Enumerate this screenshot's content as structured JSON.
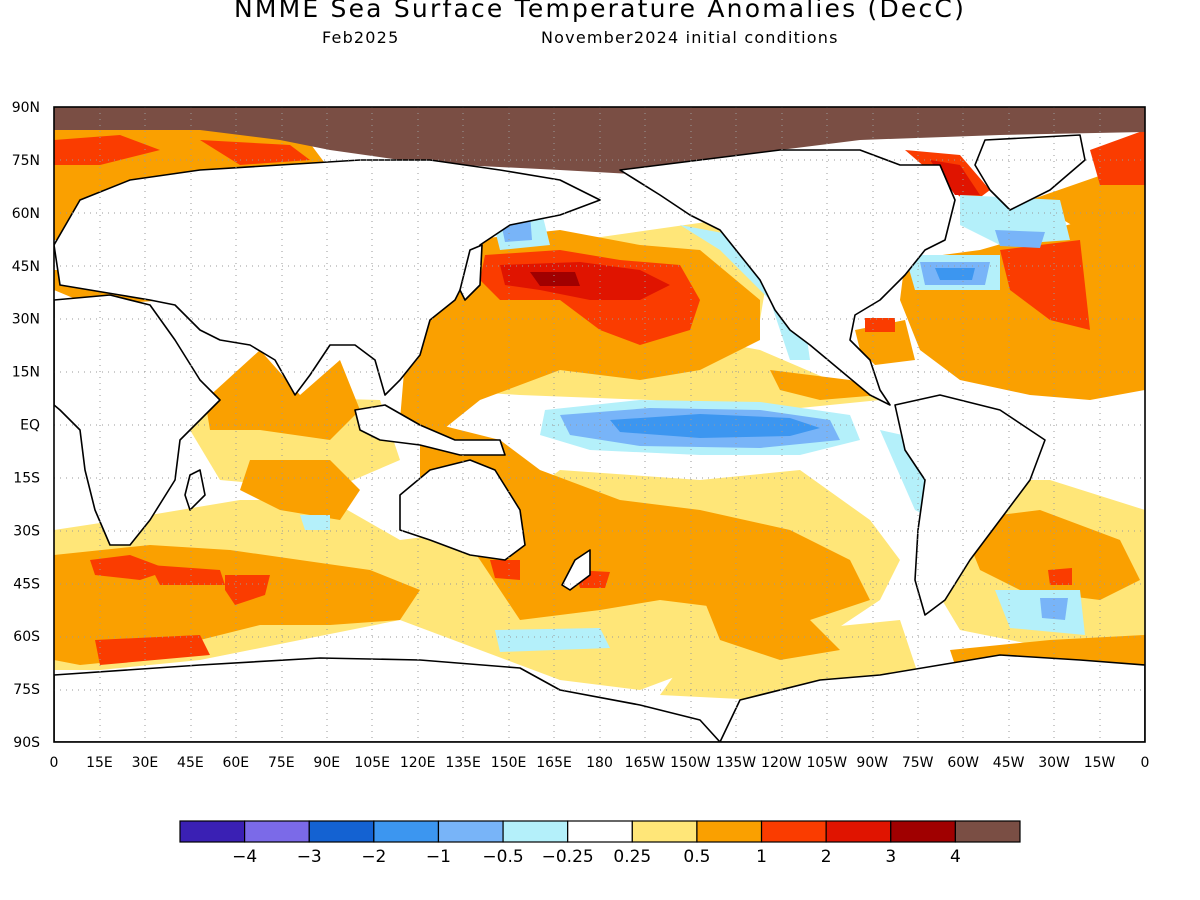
{
  "title": "NMME Sea Surface Temperature Anomalies (DecC)",
  "subtitle_left": "Feb2025",
  "subtitle_right": "November2024 initial conditions",
  "map": {
    "projection": "equirectangular",
    "lon_range": [
      0,
      360
    ],
    "lat_range": [
      -90,
      90
    ],
    "grid": "dotted",
    "lat_labels": [
      "90N",
      "75N",
      "60N",
      "45N",
      "30N",
      "15N",
      "EQ",
      "15S",
      "30S",
      "45S",
      "60S",
      "75S",
      "90S"
    ],
    "lon_labels": [
      "0",
      "15E",
      "30E",
      "45E",
      "60E",
      "75E",
      "90E",
      "105E",
      "120E",
      "135E",
      "150E",
      "165E",
      "180",
      "165W",
      "150W",
      "135W",
      "120W",
      "105W",
      "90W",
      "75W",
      "60W",
      "45W",
      "30W",
      "15W",
      "0"
    ]
  },
  "colorbar": {
    "colors": [
      "#3a20b4",
      "#7b6ae8",
      "#1462d2",
      "#3c96f0",
      "#78b4f8",
      "#b4f0fa",
      "#ffffff",
      "#ffe678",
      "#faa000",
      "#fa3c00",
      "#e01400",
      "#a00000",
      "#7a4e44"
    ],
    "labels": [
      "−4",
      "−3",
      "−2",
      "−1",
      "−0.5",
      "−0.25",
      "0.25",
      "0.5",
      "1",
      "2",
      "3",
      "4"
    ]
  }
}
